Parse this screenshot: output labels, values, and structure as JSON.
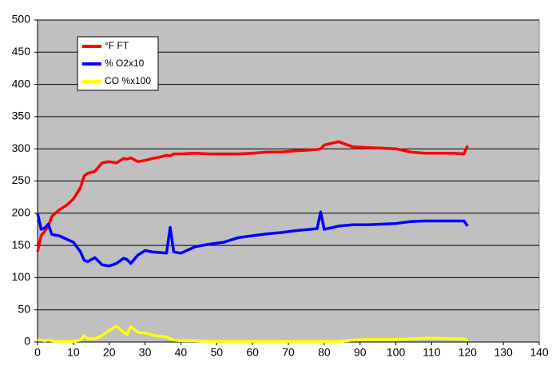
{
  "chart_data": {
    "type": "line",
    "x": [
      0,
      1,
      2,
      3,
      4,
      6,
      8,
      10,
      12,
      13,
      14,
      16,
      18,
      20,
      22,
      24,
      25,
      26,
      28,
      30,
      32,
      34,
      36,
      37,
      38,
      40,
      44,
      48,
      52,
      56,
      60,
      64,
      68,
      72,
      76,
      78,
      79,
      80,
      84,
      88,
      92,
      96,
      100,
      104,
      108,
      112,
      116,
      119,
      120
    ],
    "series": [
      {
        "name": "°F FT",
        "color": "#ff0000",
        "values": [
          140,
          165,
          172,
          180,
          195,
          205,
          212,
          222,
          240,
          258,
          262,
          265,
          278,
          280,
          278,
          285,
          284,
          286,
          280,
          282,
          285,
          287,
          290,
          289,
          292,
          292,
          293,
          292,
          292,
          292,
          293,
          295,
          295,
          297,
          298,
          299,
          300,
          306,
          311,
          303,
          302,
          301,
          300,
          295,
          293,
          293,
          293,
          292,
          305
        ]
      },
      {
        "name": "% O2x10",
        "color": "#0000ff",
        "values": [
          200,
          175,
          177,
          183,
          167,
          165,
          160,
          155,
          140,
          127,
          125,
          131,
          120,
          118,
          122,
          130,
          128,
          122,
          135,
          142,
          140,
          139,
          138,
          178,
          140,
          138,
          148,
          152,
          155,
          162,
          165,
          168,
          170,
          173,
          175,
          176,
          202,
          175,
          180,
          182,
          182,
          183,
          184,
          187,
          188,
          188,
          188,
          188,
          180
        ]
      },
      {
        "name": "CO %x100",
        "color": "#ffff00",
        "values": [
          3,
          3,
          2,
          3,
          2,
          1,
          1,
          1,
          3,
          10,
          5,
          5,
          10,
          18,
          25,
          15,
          12,
          24,
          15,
          14,
          11,
          9,
          8,
          5,
          3,
          2,
          2,
          1,
          1,
          1,
          1,
          1,
          1,
          1,
          1,
          1,
          1,
          1,
          1,
          3,
          4,
          4,
          4,
          5,
          6,
          6,
          5,
          5,
          3
        ]
      }
    ],
    "xlim": [
      0,
      140
    ],
    "xticks": [
      0,
      10,
      20,
      30,
      40,
      50,
      60,
      70,
      80,
      90,
      100,
      110,
      120,
      130,
      140
    ],
    "ylim": [
      0,
      500
    ],
    "yticks": [
      0,
      50,
      100,
      150,
      200,
      250,
      300,
      350,
      400,
      450,
      500
    ],
    "grid": true,
    "legend": "top-left",
    "background": "#c0c0c0"
  }
}
